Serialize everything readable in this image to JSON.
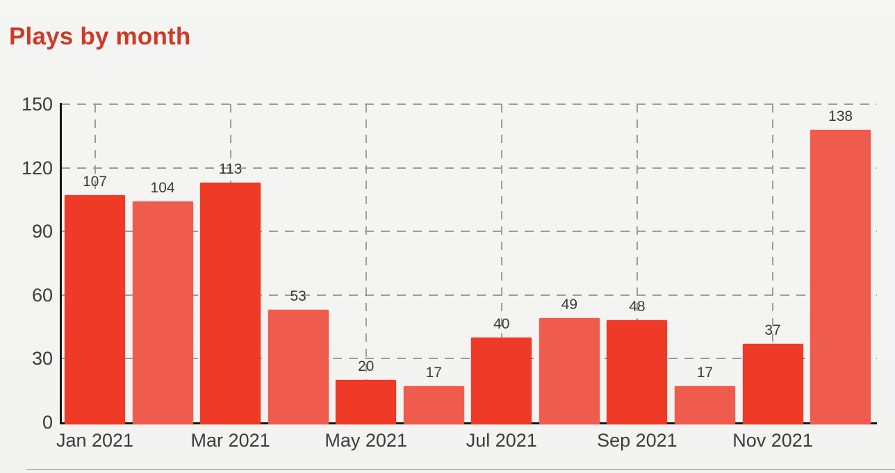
{
  "chart_data": {
    "type": "bar",
    "title": "Plays by month",
    "title_color": "#ce3a28",
    "values": [
      107,
      104,
      113,
      53,
      20,
      17,
      40,
      49,
      48,
      17,
      37,
      138
    ],
    "value_labels": [
      "107",
      "104",
      "113",
      "53",
      "20",
      "17",
      "40",
      "49",
      "48",
      "17",
      "37",
      "138"
    ],
    "x_tick_labels": [
      "Jan 2021",
      "Mar 2021",
      "May 2021",
      "Jul 2021",
      "Sep 2021",
      "Nov 2021"
    ],
    "y_ticks": [
      0,
      30,
      60,
      90,
      120,
      150
    ],
    "ylim": [
      0,
      150
    ],
    "xlabel": "",
    "ylabel": "",
    "legend": "none",
    "grid": "dashed",
    "bar_colors_alternating": [
      "#ee3a26",
      "#ef5c4d"
    ],
    "axis_color": "#161616",
    "grid_color": "#9c9c9c",
    "label_color": "#3c3c3c"
  }
}
